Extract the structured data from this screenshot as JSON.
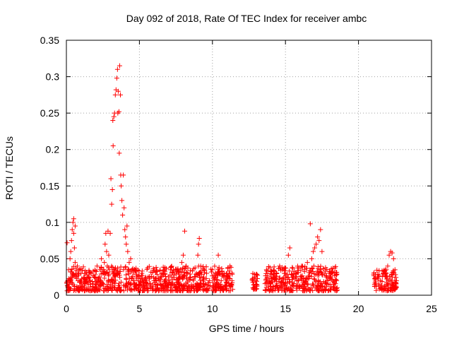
{
  "chart_data": {
    "type": "scatter",
    "title": "Day 092 of 2018, Rate Of TEC Index for receiver ambc",
    "xlabel": "GPS time / hours",
    "ylabel": "ROTI / TECUs",
    "xlim": [
      0,
      25
    ],
    "ylim": [
      0,
      0.35
    ],
    "x_ticks": [
      0,
      5,
      10,
      15,
      20,
      25
    ],
    "x_tick_labels": [
      "0",
      "5",
      "10",
      "15",
      "20",
      "25"
    ],
    "y_ticks": [
      0,
      0.05,
      0.1,
      0.15,
      0.2,
      0.25,
      0.3,
      0.35
    ],
    "y_tick_labels": [
      "0",
      "0.05",
      "0.1",
      "0.15",
      "0.2",
      "0.25",
      "0.3",
      "0.35"
    ],
    "grid": true,
    "marker": "+",
    "marker_color": "#ff0000",
    "series": [
      {
        "name": "ROTI",
        "points": [
          [
            0.05,
            0.072
          ],
          [
            0.1,
            0.02
          ],
          [
            0.15,
            0.035
          ],
          [
            0.2,
            0.015
          ],
          [
            0.25,
            0.05
          ],
          [
            0.3,
            0.06
          ],
          [
            0.35,
            0.075
          ],
          [
            0.4,
            0.09
          ],
          [
            0.45,
            0.1
          ],
          [
            0.5,
            0.105
          ],
          [
            0.5,
            0.085
          ],
          [
            0.55,
            0.065
          ],
          [
            0.6,
            0.045
          ],
          [
            0.6,
            0.095
          ],
          [
            0.65,
            0.03
          ],
          [
            0.7,
            0.025
          ],
          [
            0.75,
            0.04
          ],
          [
            0.8,
            0.02
          ],
          [
            0.9,
            0.018
          ],
          [
            1.0,
            0.03
          ],
          [
            1.1,
            0.012
          ],
          [
            1.2,
            0.025
          ],
          [
            1.3,
            0.018
          ],
          [
            1.4,
            0.022
          ],
          [
            1.5,
            0.015
          ],
          [
            1.6,
            0.02
          ],
          [
            1.7,
            0.03
          ],
          [
            1.8,
            0.012
          ],
          [
            1.9,
            0.025
          ],
          [
            2.0,
            0.018
          ],
          [
            2.1,
            0.04
          ],
          [
            2.2,
            0.022
          ],
          [
            2.3,
            0.035
          ],
          [
            2.4,
            0.05
          ],
          [
            2.5,
            0.03
          ],
          [
            2.6,
            0.045
          ],
          [
            2.65,
            0.07
          ],
          [
            2.7,
            0.085
          ],
          [
            2.75,
            0.06
          ],
          [
            2.8,
            0.04
          ],
          [
            2.85,
            0.088
          ],
          [
            2.9,
            0.055
          ],
          [
            2.95,
            0.035
          ],
          [
            3.0,
            0.085
          ],
          [
            3.05,
            0.16
          ],
          [
            3.1,
            0.125
          ],
          [
            3.15,
            0.145
          ],
          [
            3.18,
            0.24
          ],
          [
            3.2,
            0.205
          ],
          [
            3.25,
            0.245
          ],
          [
            3.3,
            0.25
          ],
          [
            3.35,
            0.275
          ],
          [
            3.4,
            0.282
          ],
          [
            3.45,
            0.298
          ],
          [
            3.5,
            0.31
          ],
          [
            3.52,
            0.25
          ],
          [
            3.55,
            0.28
          ],
          [
            3.6,
            0.252
          ],
          [
            3.62,
            0.195
          ],
          [
            3.65,
            0.315
          ],
          [
            3.7,
            0.275
          ],
          [
            3.72,
            0.165
          ],
          [
            3.75,
            0.15
          ],
          [
            3.8,
            0.13
          ],
          [
            3.85,
            0.11
          ],
          [
            3.9,
            0.165
          ],
          [
            3.95,
            0.12
          ],
          [
            4.0,
            0.09
          ],
          [
            4.05,
            0.08
          ],
          [
            4.1,
            0.07
          ],
          [
            4.15,
            0.095
          ],
          [
            4.2,
            0.06
          ],
          [
            4.3,
            0.045
          ],
          [
            4.4,
            0.05
          ],
          [
            4.5,
            0.035
          ],
          [
            4.6,
            0.02
          ],
          [
            4.8,
            0.025
          ],
          [
            5.0,
            0.015
          ],
          [
            5.2,
            0.022
          ],
          [
            5.4,
            0.018
          ],
          [
            5.6,
            0.025
          ],
          [
            5.8,
            0.012
          ],
          [
            6.0,
            0.02
          ],
          [
            6.2,
            0.015
          ],
          [
            6.4,
            0.022
          ],
          [
            6.6,
            0.03
          ],
          [
            6.8,
            0.02
          ],
          [
            7.0,
            0.018
          ],
          [
            7.2,
            0.025
          ],
          [
            7.4,
            0.015
          ],
          [
            7.6,
            0.022
          ],
          [
            7.8,
            0.035
          ],
          [
            7.9,
            0.045
          ],
          [
            8.0,
            0.055
          ],
          [
            8.1,
            0.088
          ],
          [
            8.2,
            0.04
          ],
          [
            8.3,
            0.03
          ],
          [
            8.5,
            0.025
          ],
          [
            8.7,
            0.02
          ],
          [
            8.9,
            0.03
          ],
          [
            9.0,
            0.055
          ],
          [
            9.05,
            0.07
          ],
          [
            9.1,
            0.078
          ],
          [
            9.2,
            0.04
          ],
          [
            9.4,
            0.025
          ],
          [
            9.6,
            0.03
          ],
          [
            9.8,
            0.02
          ],
          [
            10.0,
            0.035
          ],
          [
            10.2,
            0.025
          ],
          [
            10.4,
            0.055
          ],
          [
            10.6,
            0.02
          ],
          [
            10.8,
            0.03
          ],
          [
            11.0,
            0.018
          ],
          [
            11.2,
            0.04
          ],
          [
            11.3,
            0.015
          ],
          [
            12.8,
            0.02
          ],
          [
            12.9,
            0.025
          ],
          [
            13.0,
            0.015
          ],
          [
            13.7,
            0.035
          ],
          [
            13.9,
            0.02
          ],
          [
            14.2,
            0.025
          ],
          [
            14.4,
            0.03
          ],
          [
            14.6,
            0.04
          ],
          [
            14.8,
            0.035
          ],
          [
            15.0,
            0.03
          ],
          [
            15.2,
            0.055
          ],
          [
            15.3,
            0.065
          ],
          [
            15.5,
            0.025
          ],
          [
            15.7,
            0.03
          ],
          [
            15.9,
            0.02
          ],
          [
            16.1,
            0.04
          ],
          [
            16.3,
            0.035
          ],
          [
            16.5,
            0.045
          ],
          [
            16.7,
            0.098
          ],
          [
            16.8,
            0.05
          ],
          [
            16.9,
            0.06
          ],
          [
            17.0,
            0.065
          ],
          [
            17.1,
            0.07
          ],
          [
            17.2,
            0.08
          ],
          [
            17.3,
            0.075
          ],
          [
            17.4,
            0.09
          ],
          [
            17.5,
            0.06
          ],
          [
            17.7,
            0.03
          ],
          [
            17.9,
            0.02
          ],
          [
            18.1,
            0.025
          ],
          [
            18.3,
            0.015
          ],
          [
            18.5,
            0.02
          ],
          [
            21.1,
            0.015
          ],
          [
            21.3,
            0.025
          ],
          [
            21.5,
            0.02
          ],
          [
            21.7,
            0.03
          ],
          [
            21.9,
            0.035
          ],
          [
            22.0,
            0.04
          ],
          [
            22.1,
            0.055
          ],
          [
            22.2,
            0.06
          ],
          [
            22.3,
            0.058
          ],
          [
            22.4,
            0.05
          ],
          [
            22.5,
            0.035
          ],
          [
            22.6,
            0.02
          ]
        ]
      }
    ],
    "dense_clusters": [
      {
        "x_range": [
          0.0,
          11.4
        ],
        "y_range": [
          0.006,
          0.04
        ],
        "description": "dense band"
      },
      {
        "x_range": [
          12.7,
          13.1
        ],
        "y_range": [
          0.008,
          0.03
        ],
        "description": "dense band"
      },
      {
        "x_range": [
          13.6,
          18.6
        ],
        "y_range": [
          0.006,
          0.04
        ],
        "description": "dense band"
      },
      {
        "x_range": [
          21.0,
          22.6
        ],
        "y_range": [
          0.006,
          0.035
        ],
        "description": "dense band"
      }
    ]
  }
}
